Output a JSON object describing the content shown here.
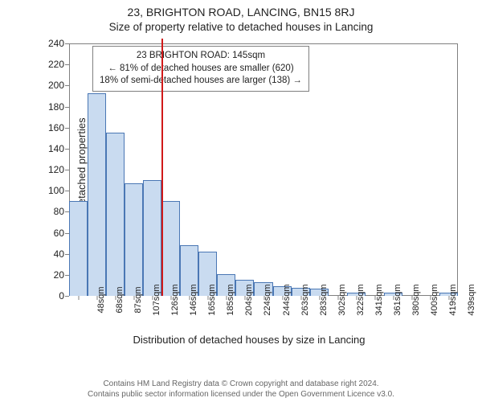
{
  "title1": "23, BRIGHTON ROAD, LANCING, BN15 8RJ",
  "title2": "Size of property relative to detached houses in Lancing",
  "ylabel": "Number of detached properties",
  "xlabel": "Distribution of detached houses by size in Lancing",
  "ylim": [
    0,
    240
  ],
  "ytick_step": 20,
  "chart": {
    "type": "histogram",
    "bar_fill": "#c9dbf0",
    "bar_stroke": "#4a77b4",
    "background": "#ffffff",
    "border_color": "#808080",
    "categories": [
      "48sqm",
      "68sqm",
      "87sqm",
      "107sqm",
      "126sqm",
      "146sqm",
      "165sqm",
      "185sqm",
      "204sqm",
      "224sqm",
      "244sqm",
      "263sqm",
      "283sqm",
      "302sqm",
      "322sqm",
      "341sqm",
      "361sqm",
      "380sqm",
      "400sqm",
      "419sqm",
      "439sqm"
    ],
    "values": [
      90,
      193,
      155,
      107,
      110,
      90,
      48,
      42,
      21,
      15,
      13,
      9,
      8,
      7,
      0,
      3,
      0,
      3,
      0,
      0,
      3
    ]
  },
  "ref": {
    "index": 5,
    "color": "#d11919"
  },
  "legend": {
    "line1": "23 BRIGHTON ROAD: 145sqm",
    "line2": "← 81% of detached houses are smaller (620)",
    "line3": "18% of semi-detached houses are larger (138) →"
  },
  "footer1": "Contains HM Land Registry data © Crown copyright and database right 2024.",
  "footer2": "Contains public sector information licensed under the Open Government Licence v3.0."
}
